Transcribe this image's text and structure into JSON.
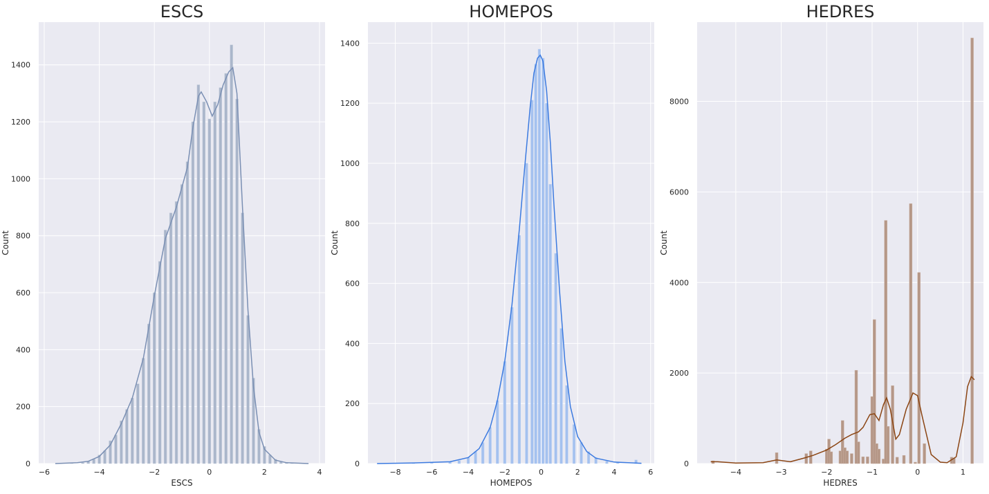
{
  "chart_data": [
    {
      "type": "histogram",
      "title": "ESCS",
      "xlabel": "ESCS",
      "ylabel": "Count",
      "xlim": [
        -6.2,
        4.2
      ],
      "ylim": [
        0,
        1550
      ],
      "xticks": [
        -6,
        -4,
        -2,
        0,
        2,
        4
      ],
      "yticks": [
        0,
        200,
        400,
        600,
        800,
        1000,
        1200,
        1400
      ],
      "grid": true,
      "bar_color": "#aab6cb",
      "bar_edge_color": "#c3ccda",
      "kde_color": "#7a8fb3",
      "bin_width": 0.096,
      "histogram": [
        {
          "x": -5.6,
          "y": 0
        },
        {
          "x": -5.0,
          "y": 1
        },
        {
          "x": -4.6,
          "y": 3
        },
        {
          "x": -4.4,
          "y": 8
        },
        {
          "x": -4.2,
          "y": 15
        },
        {
          "x": -4.0,
          "y": 30
        },
        {
          "x": -3.8,
          "y": 45
        },
        {
          "x": -3.6,
          "y": 80
        },
        {
          "x": -3.4,
          "y": 100
        },
        {
          "x": -3.2,
          "y": 150
        },
        {
          "x": -3.0,
          "y": 190
        },
        {
          "x": -2.8,
          "y": 230
        },
        {
          "x": -2.6,
          "y": 280
        },
        {
          "x": -2.4,
          "y": 370
        },
        {
          "x": -2.2,
          "y": 490
        },
        {
          "x": -2.0,
          "y": 600
        },
        {
          "x": -1.8,
          "y": 710
        },
        {
          "x": -1.6,
          "y": 820
        },
        {
          "x": -1.4,
          "y": 880
        },
        {
          "x": -1.2,
          "y": 920
        },
        {
          "x": -1.0,
          "y": 980
        },
        {
          "x": -0.8,
          "y": 1060
        },
        {
          "x": -0.6,
          "y": 1200
        },
        {
          "x": -0.4,
          "y": 1330
        },
        {
          "x": -0.2,
          "y": 1270
        },
        {
          "x": 0.0,
          "y": 1210
        },
        {
          "x": 0.2,
          "y": 1270
        },
        {
          "x": 0.4,
          "y": 1320
        },
        {
          "x": 0.6,
          "y": 1370
        },
        {
          "x": 0.8,
          "y": 1470
        },
        {
          "x": 1.0,
          "y": 1280
        },
        {
          "x": 1.2,
          "y": 880
        },
        {
          "x": 1.4,
          "y": 520
        },
        {
          "x": 1.6,
          "y": 300
        },
        {
          "x": 1.8,
          "y": 120
        },
        {
          "x": 2.0,
          "y": 60
        },
        {
          "x": 2.2,
          "y": 30
        },
        {
          "x": 2.4,
          "y": 15
        },
        {
          "x": 2.6,
          "y": 6
        },
        {
          "x": 2.8,
          "y": 2
        },
        {
          "x": 3.0,
          "y": 1
        },
        {
          "x": 3.6,
          "y": 0
        }
      ],
      "kde": [
        {
          "x": -5.6,
          "y": 0
        },
        {
          "x": -4.8,
          "y": 3
        },
        {
          "x": -4.4,
          "y": 8
        },
        {
          "x": -4.0,
          "y": 25
        },
        {
          "x": -3.6,
          "y": 65
        },
        {
          "x": -3.2,
          "y": 140
        },
        {
          "x": -2.8,
          "y": 230
        },
        {
          "x": -2.4,
          "y": 370
        },
        {
          "x": -2.0,
          "y": 590
        },
        {
          "x": -1.6,
          "y": 790
        },
        {
          "x": -1.2,
          "y": 900
        },
        {
          "x": -0.8,
          "y": 1040
        },
        {
          "x": -0.6,
          "y": 1180
        },
        {
          "x": -0.4,
          "y": 1290
        },
        {
          "x": -0.3,
          "y": 1305
        },
        {
          "x": -0.1,
          "y": 1270
        },
        {
          "x": 0.1,
          "y": 1220
        },
        {
          "x": 0.3,
          "y": 1260
        },
        {
          "x": 0.5,
          "y": 1330
        },
        {
          "x": 0.7,
          "y": 1375
        },
        {
          "x": 0.85,
          "y": 1390
        },
        {
          "x": 1.0,
          "y": 1300
        },
        {
          "x": 1.2,
          "y": 900
        },
        {
          "x": 1.4,
          "y": 540
        },
        {
          "x": 1.6,
          "y": 270
        },
        {
          "x": 1.8,
          "y": 110
        },
        {
          "x": 2.0,
          "y": 50
        },
        {
          "x": 2.4,
          "y": 12
        },
        {
          "x": 2.8,
          "y": 3
        },
        {
          "x": 3.6,
          "y": 0
        }
      ]
    },
    {
      "type": "histogram",
      "title": "HOMEPOS",
      "xlabel": "HOMEPOS",
      "ylabel": "Count",
      "xlim": [
        -9.5,
        6.2
      ],
      "ylim": [
        0,
        1470
      ],
      "xticks": [
        -8,
        -6,
        -4,
        -2,
        0,
        2,
        4,
        6
      ],
      "yticks": [
        0,
        200,
        400,
        600,
        800,
        1000,
        1200,
        1400
      ],
      "grid": true,
      "bar_color": "#a4c1ef",
      "bar_edge_color": "#bcd1f3",
      "kde_color": "#3b7ae0",
      "bin_width": 0.14,
      "histogram": [
        {
          "x": -9.0,
          "y": 0
        },
        {
          "x": -7.0,
          "y": 1
        },
        {
          "x": -6.0,
          "y": 2
        },
        {
          "x": -5.0,
          "y": 5
        },
        {
          "x": -4.5,
          "y": 10
        },
        {
          "x": -4.0,
          "y": 20
        },
        {
          "x": -3.6,
          "y": 40
        },
        {
          "x": -3.2,
          "y": 70
        },
        {
          "x": -2.8,
          "y": 120
        },
        {
          "x": -2.4,
          "y": 210
        },
        {
          "x": -2.0,
          "y": 340
        },
        {
          "x": -1.6,
          "y": 520
        },
        {
          "x": -1.2,
          "y": 760
        },
        {
          "x": -0.8,
          "y": 1000
        },
        {
          "x": -0.5,
          "y": 1210
        },
        {
          "x": -0.3,
          "y": 1330
        },
        {
          "x": -0.1,
          "y": 1380
        },
        {
          "x": 0.1,
          "y": 1350
        },
        {
          "x": 0.3,
          "y": 1200
        },
        {
          "x": 0.5,
          "y": 930
        },
        {
          "x": 0.8,
          "y": 700
        },
        {
          "x": 1.1,
          "y": 450
        },
        {
          "x": 1.4,
          "y": 260
        },
        {
          "x": 1.8,
          "y": 130
        },
        {
          "x": 2.2,
          "y": 70
        },
        {
          "x": 2.6,
          "y": 40
        },
        {
          "x": 3.0,
          "y": 20
        },
        {
          "x": 3.6,
          "y": 8
        },
        {
          "x": 4.2,
          "y": 4
        },
        {
          "x": 5.2,
          "y": 12
        },
        {
          "x": 5.4,
          "y": 2
        }
      ],
      "kde": [
        {
          "x": -9.0,
          "y": 0
        },
        {
          "x": -7.0,
          "y": 2
        },
        {
          "x": -5.0,
          "y": 6
        },
        {
          "x": -4.0,
          "y": 20
        },
        {
          "x": -3.4,
          "y": 50
        },
        {
          "x": -2.8,
          "y": 120
        },
        {
          "x": -2.4,
          "y": 210
        },
        {
          "x": -2.0,
          "y": 340
        },
        {
          "x": -1.6,
          "y": 530
        },
        {
          "x": -1.2,
          "y": 780
        },
        {
          "x": -0.9,
          "y": 990
        },
        {
          "x": -0.6,
          "y": 1190
        },
        {
          "x": -0.4,
          "y": 1300
        },
        {
          "x": -0.2,
          "y": 1350
        },
        {
          "x": -0.05,
          "y": 1360
        },
        {
          "x": 0.1,
          "y": 1340
        },
        {
          "x": 0.3,
          "y": 1240
        },
        {
          "x": 0.5,
          "y": 1070
        },
        {
          "x": 0.7,
          "y": 860
        },
        {
          "x": 1.0,
          "y": 580
        },
        {
          "x": 1.3,
          "y": 340
        },
        {
          "x": 1.6,
          "y": 190
        },
        {
          "x": 2.0,
          "y": 90
        },
        {
          "x": 2.5,
          "y": 40
        },
        {
          "x": 3.0,
          "y": 18
        },
        {
          "x": 4.0,
          "y": 5
        },
        {
          "x": 5.5,
          "y": 1
        }
      ]
    },
    {
      "type": "histogram",
      "title": "HEDRES",
      "xlabel": "HEDRES",
      "ylabel": "Count",
      "xlim": [
        -4.85,
        1.45
      ],
      "ylim": [
        0,
        9750
      ],
      "xticks": [
        -4,
        -3,
        -2,
        -1,
        0,
        1
      ],
      "yticks": [
        0,
        2000,
        4000,
        6000,
        8000
      ],
      "grid": true,
      "bar_color": "#b59787",
      "bar_edge_color": "#c9b0a2",
      "kde_color": "#8b4513",
      "bin_width": 0.06,
      "histogram": [
        {
          "x": -4.5,
          "y": 60
        },
        {
          "x": -3.1,
          "y": 240
        },
        {
          "x": -2.45,
          "y": 220
        },
        {
          "x": -2.35,
          "y": 280
        },
        {
          "x": -2.0,
          "y": 320
        },
        {
          "x": -1.95,
          "y": 540
        },
        {
          "x": -1.9,
          "y": 260
        },
        {
          "x": -1.7,
          "y": 280
        },
        {
          "x": -1.65,
          "y": 950
        },
        {
          "x": -1.6,
          "y": 350
        },
        {
          "x": -1.55,
          "y": 280
        },
        {
          "x": -1.45,
          "y": 220
        },
        {
          "x": -1.35,
          "y": 2060
        },
        {
          "x": -1.3,
          "y": 480
        },
        {
          "x": -1.2,
          "y": 150
        },
        {
          "x": -1.1,
          "y": 150
        },
        {
          "x": -1.0,
          "y": 1480
        },
        {
          "x": -0.95,
          "y": 3180
        },
        {
          "x": -0.9,
          "y": 440
        },
        {
          "x": -0.85,
          "y": 320
        },
        {
          "x": -0.75,
          "y": 100
        },
        {
          "x": -0.7,
          "y": 5370
        },
        {
          "x": -0.65,
          "y": 820
        },
        {
          "x": -0.55,
          "y": 1720
        },
        {
          "x": -0.45,
          "y": 140
        },
        {
          "x": -0.3,
          "y": 180
        },
        {
          "x": -0.15,
          "y": 5740
        },
        {
          "x": -0.05,
          "y": 30
        },
        {
          "x": 0.03,
          "y": 4220
        },
        {
          "x": 0.15,
          "y": 440
        },
        {
          "x": 0.75,
          "y": 140
        },
        {
          "x": 0.8,
          "y": 120
        },
        {
          "x": 1.2,
          "y": 9400
        }
      ],
      "kde": [
        {
          "x": -4.55,
          "y": 40
        },
        {
          "x": -4.4,
          "y": 40
        },
        {
          "x": -4.0,
          "y": 10
        },
        {
          "x": -3.4,
          "y": 20
        },
        {
          "x": -3.1,
          "y": 80
        },
        {
          "x": -2.8,
          "y": 40
        },
        {
          "x": -2.5,
          "y": 120
        },
        {
          "x": -2.3,
          "y": 180
        },
        {
          "x": -2.0,
          "y": 300
        },
        {
          "x": -1.8,
          "y": 420
        },
        {
          "x": -1.6,
          "y": 560
        },
        {
          "x": -1.45,
          "y": 640
        },
        {
          "x": -1.3,
          "y": 700
        },
        {
          "x": -1.2,
          "y": 800
        },
        {
          "x": -1.05,
          "y": 1080
        },
        {
          "x": -0.95,
          "y": 1100
        },
        {
          "x": -0.85,
          "y": 950
        },
        {
          "x": -0.75,
          "y": 1300
        },
        {
          "x": -0.68,
          "y": 1450
        },
        {
          "x": -0.6,
          "y": 1200
        },
        {
          "x": -0.48,
          "y": 540
        },
        {
          "x": -0.4,
          "y": 640
        },
        {
          "x": -0.25,
          "y": 1200
        },
        {
          "x": -0.1,
          "y": 1560
        },
        {
          "x": 0.0,
          "y": 1500
        },
        {
          "x": 0.1,
          "y": 1050
        },
        {
          "x": 0.3,
          "y": 200
        },
        {
          "x": 0.5,
          "y": 30
        },
        {
          "x": 0.65,
          "y": 20
        },
        {
          "x": 0.85,
          "y": 150
        },
        {
          "x": 1.0,
          "y": 900
        },
        {
          "x": 1.1,
          "y": 1700
        },
        {
          "x": 1.18,
          "y": 1920
        },
        {
          "x": 1.25,
          "y": 1850
        }
      ]
    }
  ]
}
